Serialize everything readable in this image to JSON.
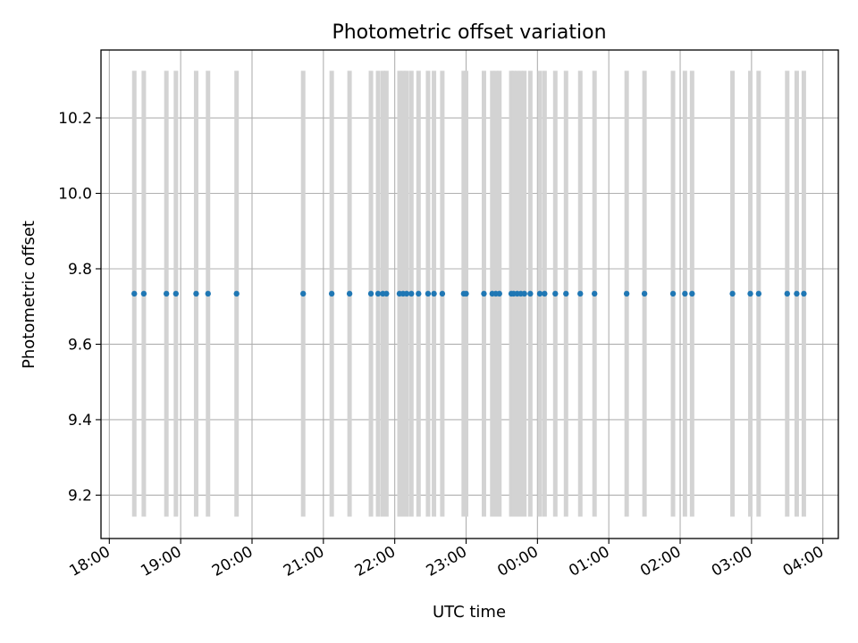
{
  "chart_data": {
    "type": "scatter",
    "title": "Photometric offset variation",
    "xlabel": "UTC time",
    "ylabel": "Photometric offset",
    "x_tick_labels": [
      "18:00",
      "19:00",
      "20:00",
      "21:00",
      "22:00",
      "23:00",
      "00:00",
      "01:00",
      "02:00",
      "03:00",
      "04:00"
    ],
    "y_tick_labels": [
      "9.2",
      "9.4",
      "9.6",
      "9.8",
      "10.0",
      "10.2"
    ],
    "x_axis_start": "18:00",
    "xlim": [
      "17:53",
      "04:13"
    ],
    "ylim": [
      9.085,
      10.38
    ],
    "grid": true,
    "series": [
      {
        "color": "#1f77b4",
        "x": [
          "18:21",
          "18:29",
          "18:48",
          "18:56",
          "19:13",
          "19:23",
          "19:47",
          "20:43",
          "21:07",
          "21:22",
          "21:40",
          "21:46",
          "21:50",
          "21:53",
          "22:04",
          "22:07",
          "22:10",
          "22:14",
          "22:20",
          "22:28",
          "22:33",
          "22:40",
          "22:58",
          "23:00",
          "23:15",
          "23:22",
          "23:25",
          "23:28",
          "23:38",
          "23:40",
          "23:43",
          "23:46",
          "23:49",
          "23:54",
          "00:02",
          "00:06",
          "00:15",
          "00:24",
          "00:36",
          "00:48",
          "01:15",
          "01:30",
          "01:54",
          "02:04",
          "02:10",
          "02:44",
          "02:59",
          "03:06",
          "03:30",
          "03:38",
          "03:44"
        ],
        "y": [
          9.734,
          9.734,
          9.734,
          9.734,
          9.734,
          9.734,
          9.734,
          9.734,
          9.734,
          9.734,
          9.734,
          9.734,
          9.734,
          9.734,
          9.734,
          9.734,
          9.734,
          9.734,
          9.734,
          9.734,
          9.734,
          9.734,
          9.734,
          9.734,
          9.734,
          9.734,
          9.734,
          9.734,
          9.734,
          9.734,
          9.734,
          9.734,
          9.734,
          9.734,
          9.734,
          9.734,
          9.734,
          9.734,
          9.734,
          9.734,
          9.734,
          9.734,
          9.734,
          9.734,
          9.734,
          9.734,
          9.734,
          9.734,
          9.734,
          9.734,
          9.734
        ],
        "error_bar_range": [
          9.143,
          10.325
        ],
        "error_bar_color": "#d3d3d3"
      }
    ]
  }
}
